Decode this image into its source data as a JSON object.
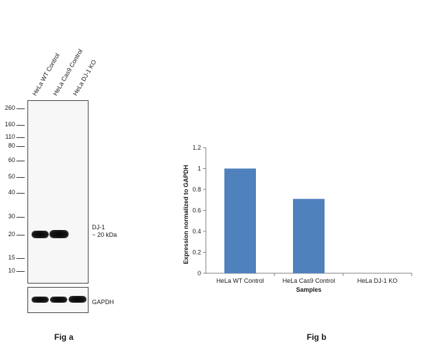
{
  "fig_a": {
    "lanes": [
      "HeLa WT Control",
      "HeLa Cas9 Control",
      "HeLa DJ-1 KO"
    ],
    "mw_markers": [
      "260",
      "160",
      "110",
      "80",
      "60",
      "50",
      "40",
      "30",
      "20",
      "15",
      "10"
    ],
    "target_label_line1": "DJ-1",
    "target_label_line2": "~ 20 kDa",
    "loading_control_label": "GAPDH",
    "caption": "Fig a"
  },
  "fig_b": {
    "caption": "Fig b"
  },
  "chart_data": {
    "type": "bar",
    "categories": [
      "HeLa WT Control",
      "HeLa Cas9 Control",
      "HeLa DJ-1 KO"
    ],
    "values": [
      1.0,
      0.71,
      0.0
    ],
    "xlabel": "Samples",
    "ylabel": "Expression  normalized to GAPDH",
    "ylim": [
      0,
      1.2
    ],
    "yticks": [
      "0",
      "0.2",
      "0.4",
      "0.6",
      "0.8",
      "1",
      "1.2"
    ],
    "bar_color": "#4f81bd",
    "grid": false
  }
}
